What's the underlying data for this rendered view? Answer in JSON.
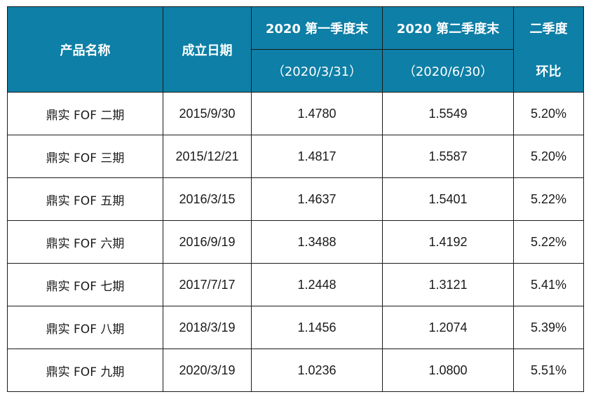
{
  "headers": {
    "product_name": "产品名称",
    "establish_date": "成立日期",
    "q1_end": "2020 第一季度末",
    "q1_date": "（2020/3/31）",
    "q2_end": "2020 第二季度末",
    "q2_date": "（2020/6/30）",
    "ratio_top": "二季度",
    "ratio_bottom": "环比"
  },
  "rows": [
    {
      "name": "鼎实 FOF 二期",
      "date": "2015/9/30",
      "q1": "1.4780",
      "q2": "1.5549",
      "ratio": "5.20%"
    },
    {
      "name": "鼎实 FOF 三期",
      "date": "2015/12/21",
      "q1": "1.4817",
      "q2": "1.5587",
      "ratio": "5.20%"
    },
    {
      "name": "鼎实 FOF 五期",
      "date": "2016/3/15",
      "q1": "1.4637",
      "q2": "1.5401",
      "ratio": "5.22%"
    },
    {
      "name": "鼎实 FOF 六期",
      "date": "2016/9/19",
      "q1": "1.3488",
      "q2": "1.4192",
      "ratio": "5.22%"
    },
    {
      "name": "鼎实 FOF 七期",
      "date": "2017/7/17",
      "q1": "1.2448",
      "q2": "1.3121",
      "ratio": "5.41%"
    },
    {
      "name": "鼎实 FOF 八期",
      "date": "2018/3/19",
      "q1": "1.1456",
      "q2": "1.2074",
      "ratio": "5.39%"
    },
    {
      "name": "鼎实 FOF 九期",
      "date": "2020/3/19",
      "q1": "1.0236",
      "q2": "1.0800",
      "ratio": "5.51%"
    }
  ],
  "colors": {
    "header_bg": "#0e7fa6",
    "header_text": "#ffffff",
    "border": "#1a1a1a"
  }
}
